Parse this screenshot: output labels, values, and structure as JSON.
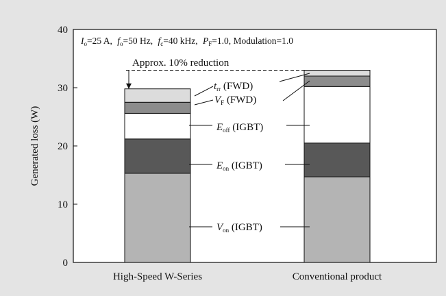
{
  "chart_data": {
    "type": "bar",
    "stacked": true,
    "ylabel": "Generated loss (W)",
    "ylim": [
      0,
      40
    ],
    "yticks": [
      0,
      10,
      20,
      30,
      40
    ],
    "categories": [
      "High-Speed W-Series",
      "Conventional product"
    ],
    "conditions": {
      "io": {
        "main": "I",
        "sub": "o",
        "rest": "=25 A,"
      },
      "fo": {
        "main": "f",
        "sub": "o",
        "rest": "=50 Hz,"
      },
      "fc": {
        "main": "f",
        "sub": "c",
        "rest": "=40 kHz,"
      },
      "pf": {
        "main": "P",
        "sub": "F",
        "rest": "=1.0, Modulation=1.0"
      }
    },
    "series": [
      {
        "name": "Von (IGBT)",
        "main": "V",
        "sub": "on",
        "tail": " (IGBT)",
        "values": [
          15.3,
          14.7
        ],
        "color": "#b4b4b4"
      },
      {
        "name": "Eon (IGBT)",
        "main": "E",
        "sub": "on",
        "tail": " (IGBT)",
        "values": [
          5.9,
          5.8
        ],
        "color": "#585858"
      },
      {
        "name": "Eoff (IGBT)",
        "main": "E",
        "sub": "off",
        "tail": " (IGBT)",
        "values": [
          4.4,
          9.7
        ],
        "color": "#ffffff"
      },
      {
        "name": "VF (FWD)",
        "main": "V",
        "sub": "F",
        "tail": " (FWD)",
        "values": [
          1.9,
          1.8
        ],
        "color": "#8c8c8c"
      },
      {
        "name": "trr (FWD)",
        "main": "t",
        "sub": "rr",
        "tail": " (FWD)",
        "values": [
          2.3,
          1.0
        ],
        "color": "#dcdcdc"
      }
    ],
    "annotation": "Approx. 10% reduction"
  }
}
